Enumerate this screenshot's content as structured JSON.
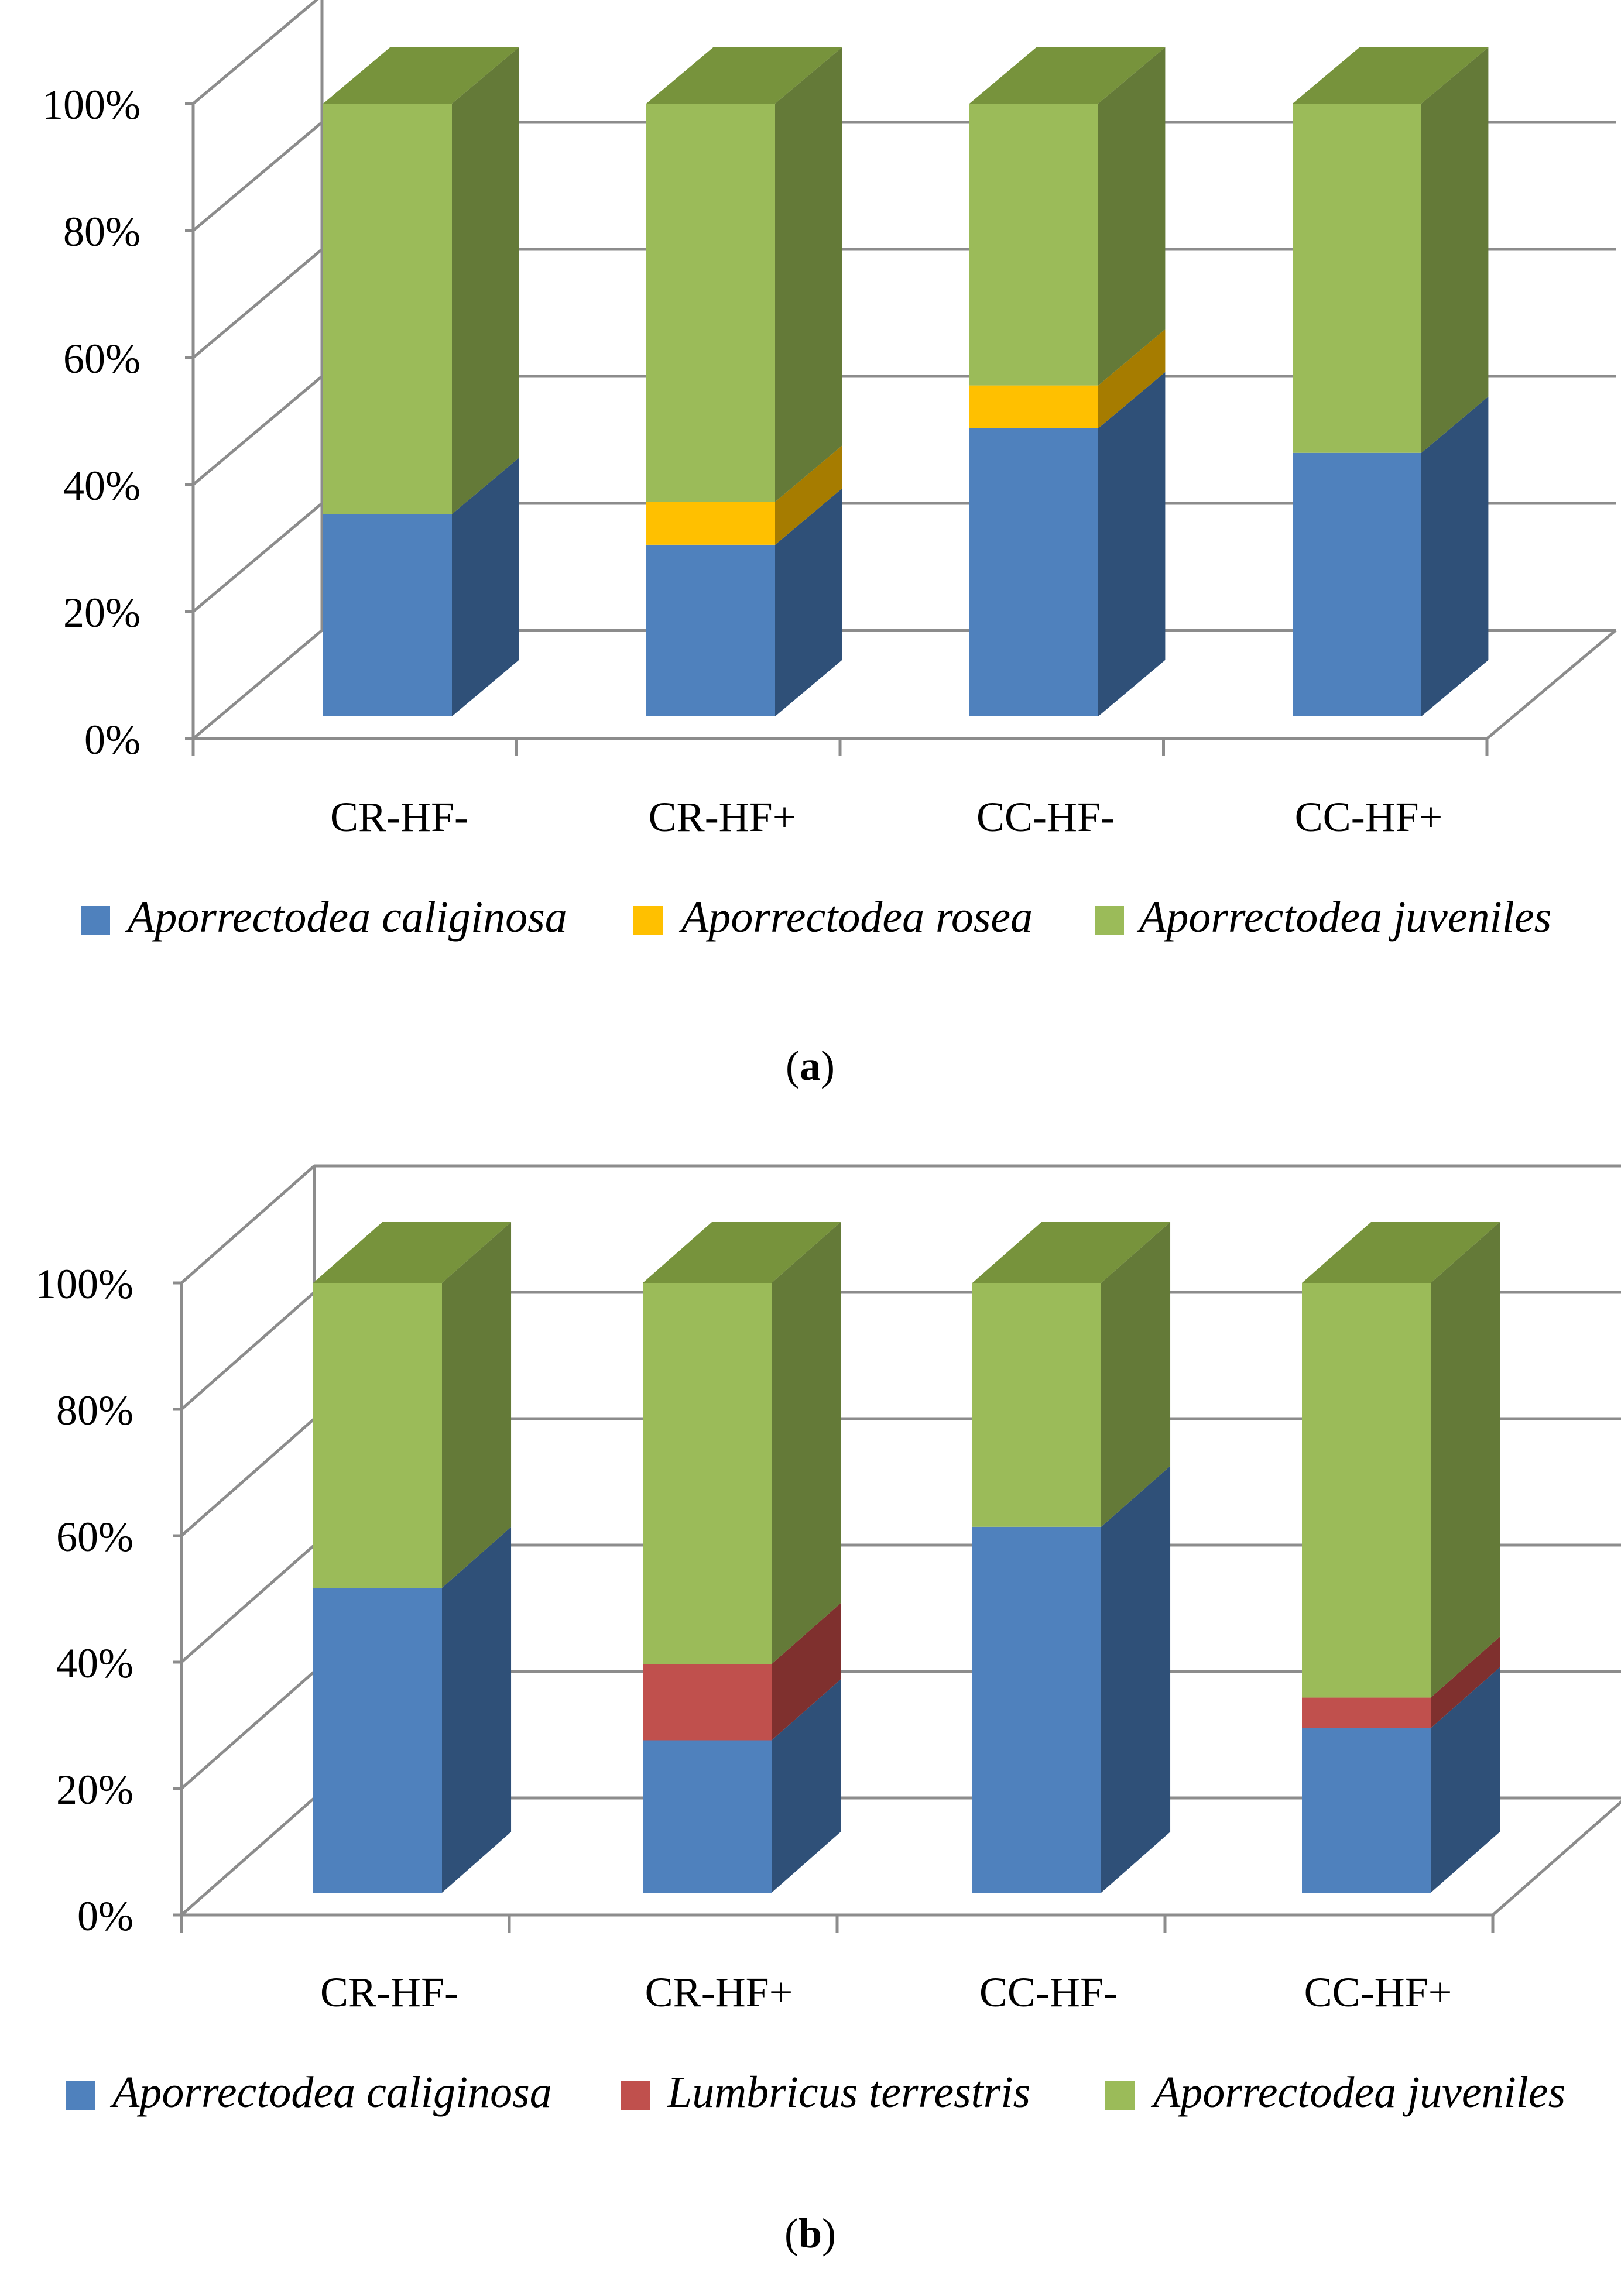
{
  "chart_data": [
    {
      "type": "bar",
      "stacked": true,
      "percent": true,
      "style": "3d",
      "caption_open": "(",
      "caption_letter": "a",
      "caption_close": ")",
      "categories": [
        "CR-HF-",
        "CR-HF+",
        "CC-HF-",
        "CC-HF+"
      ],
      "y_ticks": [
        "0%",
        "20%",
        "40%",
        "60%",
        "80%",
        "100%"
      ],
      "ylim": [
        0,
        100
      ],
      "legend_position": "bottom",
      "series": [
        {
          "name": "Aporrectodea caliginosa",
          "values": [
            33,
            28,
            47,
            43
          ],
          "color": "#4f81bd",
          "side_color": "#2f5078",
          "top_color": "#3a6396"
        },
        {
          "name": "Aporrectodea rosea",
          "values": [
            0,
            7,
            7,
            0
          ],
          "color": "#ffc000",
          "side_color": "#a67c00",
          "top_color": "#d9a300"
        },
        {
          "name": "Aporrectodea juveniles",
          "values": [
            67,
            65,
            46,
            57
          ],
          "color": "#9bbb59",
          "side_color": "#647a38",
          "top_color": "#77933c"
        }
      ]
    },
    {
      "type": "bar",
      "stacked": true,
      "percent": true,
      "style": "3d",
      "caption_open": "(",
      "caption_letter": "b",
      "caption_close": ")",
      "categories": [
        "CR-HF-",
        "CR-HF+",
        "CC-HF-",
        "CC-HF+"
      ],
      "y_ticks": [
        "0%",
        "20%",
        "40%",
        "60%",
        "80%",
        "100%"
      ],
      "ylim": [
        0,
        100
      ],
      "legend_position": "bottom",
      "series": [
        {
          "name": "Aporrectodea caliginosa",
          "values": [
            50,
            25,
            60,
            27
          ],
          "color": "#4f81bd",
          "side_color": "#2f5078",
          "top_color": "#3a6396"
        },
        {
          "name": "Lumbricus terrestris",
          "values": [
            0,
            12.5,
            0,
            5
          ],
          "color": "#c0504d",
          "side_color": "#7f302e",
          "top_color": "#9b3b39"
        },
        {
          "name": "Aporrectodea juveniles",
          "values": [
            50,
            62.5,
            40,
            68
          ],
          "color": "#9bbb59",
          "side_color": "#647a38",
          "top_color": "#77933c"
        }
      ]
    }
  ]
}
